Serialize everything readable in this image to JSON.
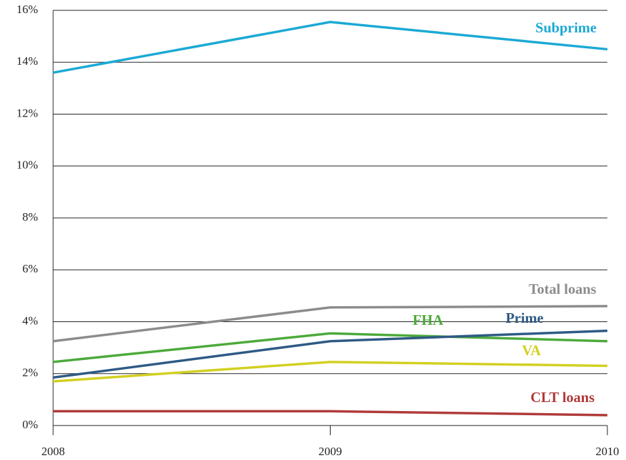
{
  "chart_data": {
    "type": "line",
    "x": [
      2008,
      2009,
      2010
    ],
    "xlim": [
      2008,
      2010
    ],
    "xticks": [
      2008,
      2009,
      2010
    ],
    "ylim": [
      0,
      16
    ],
    "yticks": [
      {
        "value": 0,
        "label": "0%"
      },
      {
        "value": 2,
        "label": "2%"
      },
      {
        "value": 4,
        "label": "4%"
      },
      {
        "value": 6,
        "label": "6%"
      },
      {
        "value": 8,
        "label": "8%"
      },
      {
        "value": 10,
        "label": "10%"
      },
      {
        "value": 12,
        "label": "12%"
      },
      {
        "value": 14,
        "label": "14%"
      },
      {
        "value": 16,
        "label": "16%"
      }
    ],
    "grid": true,
    "series": [
      {
        "name": "Subprime",
        "color": "#1ba9d4",
        "values": [
          13.6,
          15.55,
          14.5
        ]
      },
      {
        "name": "Total loans",
        "color": "#8c8c8c",
        "values": [
          3.25,
          4.55,
          4.6
        ]
      },
      {
        "name": "FHA",
        "color": "#4caa3a",
        "values": [
          2.45,
          3.55,
          3.25
        ]
      },
      {
        "name": "Prime",
        "color": "#2e5a85",
        "values": [
          1.85,
          3.25,
          3.65
        ]
      },
      {
        "name": "VA",
        "color": "#d2d020",
        "values": [
          1.7,
          2.45,
          2.3
        ]
      },
      {
        "name": "CLT loans",
        "color": "#b03a3a",
        "values": [
          0.55,
          0.55,
          0.4
        ]
      }
    ]
  }
}
